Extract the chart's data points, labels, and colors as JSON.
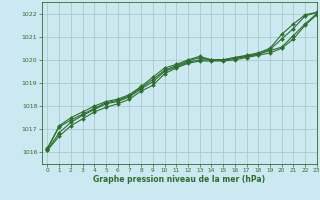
{
  "title": "Graphe pression niveau de la mer (hPa)",
  "background_color": "#cce8f0",
  "grid_color": "#aacccc",
  "line_color": "#2d6e2d",
  "xlim": [
    -0.5,
    23
  ],
  "ylim": [
    1015.5,
    1022.5
  ],
  "yticks": [
    1016,
    1017,
    1018,
    1019,
    1020,
    1021,
    1022
  ],
  "xticks": [
    0,
    1,
    2,
    3,
    4,
    5,
    6,
    7,
    8,
    9,
    10,
    11,
    12,
    13,
    14,
    15,
    16,
    17,
    18,
    19,
    20,
    21,
    22,
    23
  ],
  "series": [
    [
      1016.1,
      1016.7,
      1017.15,
      1017.45,
      1017.75,
      1017.95,
      1018.1,
      1018.3,
      1018.65,
      1018.9,
      1019.4,
      1019.65,
      1019.85,
      1019.95,
      1019.95,
      1019.95,
      1020.0,
      1020.1,
      1020.2,
      1020.3,
      1020.5,
      1020.9,
      1021.5,
      1021.95
    ],
    [
      1016.1,
      1016.85,
      1017.3,
      1017.6,
      1017.85,
      1018.1,
      1018.2,
      1018.4,
      1018.75,
      1019.05,
      1019.5,
      1019.7,
      1019.9,
      1020.0,
      1020.0,
      1020.0,
      1020.05,
      1020.15,
      1020.25,
      1020.4,
      1020.55,
      1021.05,
      1021.55,
      1022.0
    ],
    [
      1016.2,
      1017.1,
      1017.4,
      1017.65,
      1017.9,
      1018.15,
      1018.25,
      1018.45,
      1018.8,
      1019.15,
      1019.55,
      1019.75,
      1019.95,
      1020.1,
      1020.0,
      1020.0,
      1020.1,
      1020.15,
      1020.25,
      1020.45,
      1020.9,
      1021.35,
      1021.9,
      1022.05
    ],
    [
      1016.15,
      1017.15,
      1017.5,
      1017.75,
      1018.0,
      1018.2,
      1018.3,
      1018.5,
      1018.85,
      1019.25,
      1019.65,
      1019.8,
      1020.0,
      1020.15,
      1020.0,
      1020.0,
      1020.1,
      1020.2,
      1020.3,
      1020.5,
      1021.1,
      1021.55,
      1021.95,
      1022.05
    ]
  ]
}
